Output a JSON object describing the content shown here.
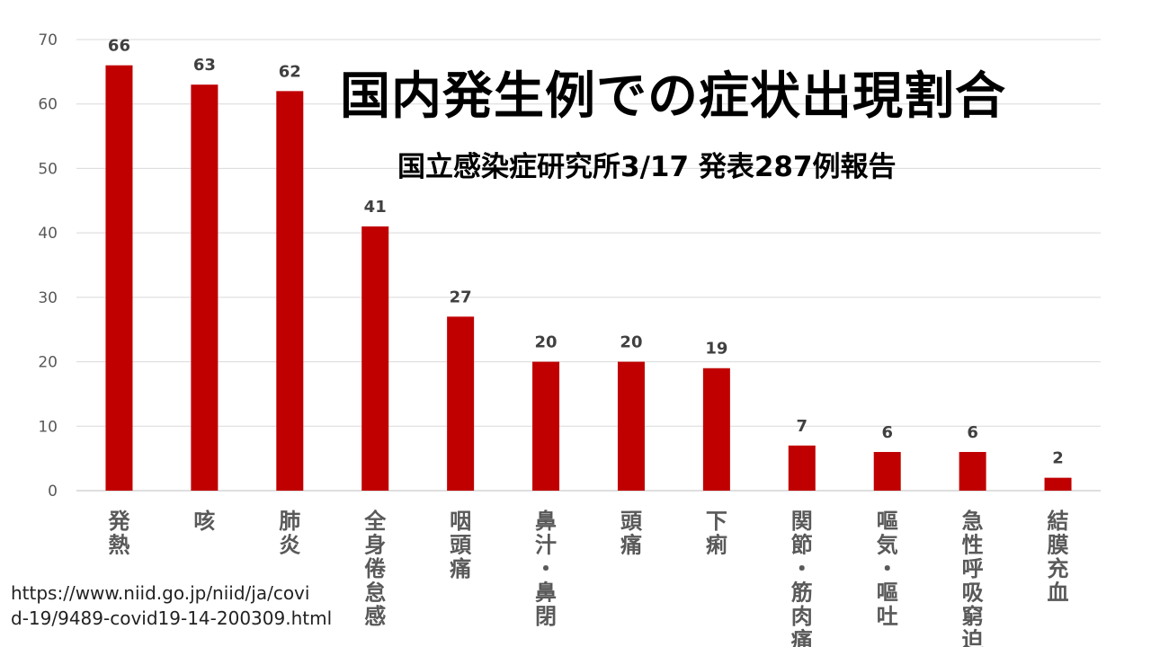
{
  "chart_data": {
    "type": "bar",
    "title": "国内発生例での症状出現割合",
    "subtitle": "国立感染症研究所3/17 発表287例報告",
    "categories": [
      "発熱",
      "咳",
      "肺炎",
      "全身倦怠感",
      "咽頭痛",
      "鼻汁・鼻閉",
      "頭痛",
      "下痢",
      "関節・筋肉痛",
      "嘔気・嘔吐",
      "急性呼吸窮迫",
      "結膜充血"
    ],
    "values": [
      66,
      63,
      62,
      41,
      27,
      20,
      20,
      19,
      7,
      6,
      6,
      2
    ],
    "ylim": [
      0,
      70
    ],
    "yticks": [
      0,
      10,
      20,
      30,
      40,
      50,
      60,
      70
    ],
    "xlabel": "",
    "ylabel": "",
    "grid": true,
    "bar_color": "#c00000"
  },
  "source": {
    "line1": "https://www.niid.go.jp/niid/ja/covi",
    "line2": "d-19/9489-covid19-14-200309.html"
  }
}
